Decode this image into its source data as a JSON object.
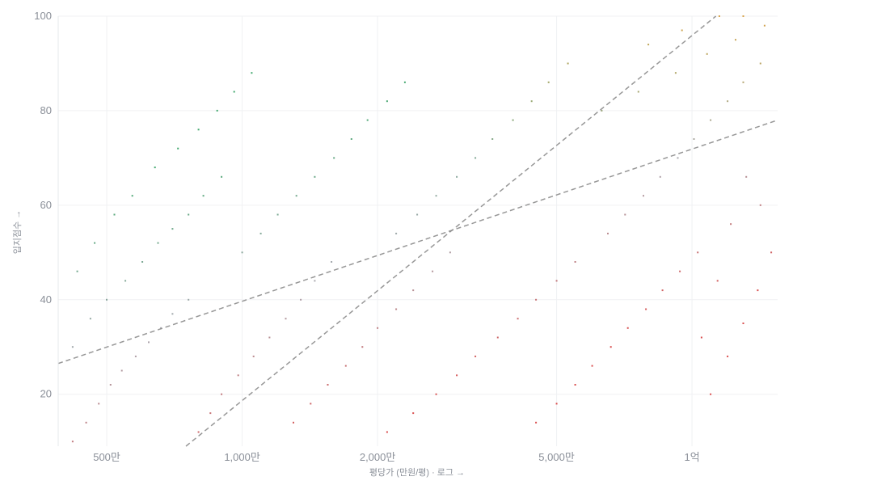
{
  "chart_data": {
    "type": "scatter",
    "xlabel": "평당가 (만원/평) · 로그 →",
    "ylabel": "입지점수 →",
    "x_scale": "log",
    "xlim": [
      390,
      15500
    ],
    "ylim": [
      9,
      100
    ],
    "grid": true,
    "x_ticks": [
      {
        "value": 500,
        "label": "500만"
      },
      {
        "value": 1000,
        "label": "1,000만"
      },
      {
        "value": 2000,
        "label": "2,000만"
      },
      {
        "value": 5000,
        "label": "5,000만"
      },
      {
        "value": 10000,
        "label": "1억"
      }
    ],
    "y_ticks": [
      {
        "value": 20,
        "label": "20"
      },
      {
        "value": 40,
        "label": "40"
      },
      {
        "value": 60,
        "label": "60"
      },
      {
        "value": 80,
        "label": "80"
      },
      {
        "value": 100,
        "label": "100"
      }
    ],
    "reference_lines": [
      {
        "style": "dashed",
        "points": [
          [
            390,
            26.5
          ],
          [
            15500,
            78
          ]
        ]
      },
      {
        "style": "dashed",
        "points": [
          [
            750,
            9
          ],
          [
            11300,
            100
          ]
        ]
      }
    ],
    "color_scale": {
      "low": "#2e9e5e",
      "mid": "#a0a0a8",
      "high": "#d63c3c",
      "warm": "#d49a3a"
    },
    "series": [
      {
        "description_free": true,
        "points": [
          [
            420,
            10
          ],
          [
            450,
            14
          ],
          [
            480,
            18
          ],
          [
            510,
            22
          ],
          [
            540,
            25
          ],
          [
            580,
            28
          ],
          [
            620,
            31
          ],
          [
            660,
            34
          ],
          [
            700,
            37
          ],
          [
            760,
            40
          ],
          [
            420,
            30
          ],
          [
            460,
            36
          ],
          [
            500,
            40
          ],
          [
            550,
            44
          ],
          [
            600,
            48
          ],
          [
            650,
            52
          ],
          [
            700,
            55
          ],
          [
            760,
            58
          ],
          [
            820,
            62
          ],
          [
            900,
            66
          ],
          [
            430,
            46
          ],
          [
            470,
            52
          ],
          [
            520,
            58
          ],
          [
            570,
            62
          ],
          [
            640,
            68
          ],
          [
            720,
            72
          ],
          [
            800,
            76
          ],
          [
            880,
            80
          ],
          [
            960,
            84
          ],
          [
            1050,
            88
          ],
          [
            800,
            12
          ],
          [
            850,
            16
          ],
          [
            900,
            20
          ],
          [
            980,
            24
          ],
          [
            1060,
            28
          ],
          [
            1150,
            32
          ],
          [
            1250,
            36
          ],
          [
            1350,
            40
          ],
          [
            1450,
            44
          ],
          [
            1580,
            48
          ],
          [
            1000,
            50
          ],
          [
            1100,
            54
          ],
          [
            1200,
            58
          ],
          [
            1320,
            62
          ],
          [
            1450,
            66
          ],
          [
            1600,
            70
          ],
          [
            1750,
            74
          ],
          [
            1900,
            78
          ],
          [
            2100,
            82
          ],
          [
            2300,
            86
          ],
          [
            1300,
            14
          ],
          [
            1420,
            18
          ],
          [
            1550,
            22
          ],
          [
            1700,
            26
          ],
          [
            1850,
            30
          ],
          [
            2000,
            34
          ],
          [
            2200,
            38
          ],
          [
            2400,
            42
          ],
          [
            2650,
            46
          ],
          [
            2900,
            50
          ],
          [
            2200,
            54
          ],
          [
            2450,
            58
          ],
          [
            2700,
            62
          ],
          [
            3000,
            66
          ],
          [
            3300,
            70
          ],
          [
            3600,
            74
          ],
          [
            4000,
            78
          ],
          [
            4400,
            82
          ],
          [
            4800,
            86
          ],
          [
            5300,
            90
          ],
          [
            2100,
            12
          ],
          [
            2400,
            16
          ],
          [
            2700,
            20
          ],
          [
            3000,
            24
          ],
          [
            3300,
            28
          ],
          [
            3700,
            32
          ],
          [
            4100,
            36
          ],
          [
            4500,
            40
          ],
          [
            5000,
            44
          ],
          [
            5500,
            48
          ],
          [
            4500,
            14
          ],
          [
            5000,
            18
          ],
          [
            5500,
            22
          ],
          [
            6000,
            26
          ],
          [
            6600,
            30
          ],
          [
            7200,
            34
          ],
          [
            7900,
            38
          ],
          [
            8600,
            42
          ],
          [
            9400,
            46
          ],
          [
            10300,
            50
          ],
          [
            6500,
            54
          ],
          [
            7100,
            58
          ],
          [
            7800,
            62
          ],
          [
            8500,
            66
          ],
          [
            9300,
            70
          ],
          [
            10100,
            74
          ],
          [
            11000,
            78
          ],
          [
            12000,
            82
          ],
          [
            13000,
            86
          ],
          [
            14200,
            90
          ],
          [
            8000,
            94
          ],
          [
            9500,
            97
          ],
          [
            11500,
            100
          ],
          [
            13000,
            100
          ],
          [
            14500,
            98
          ],
          [
            12500,
            95
          ],
          [
            10800,
            92
          ],
          [
            9200,
            88
          ],
          [
            7600,
            84
          ],
          [
            6300,
            80
          ],
          [
            11000,
            20
          ],
          [
            12000,
            28
          ],
          [
            13000,
            35
          ],
          [
            14000,
            42
          ],
          [
            15000,
            50
          ],
          [
            14200,
            60
          ],
          [
            13200,
            66
          ],
          [
            12200,
            56
          ],
          [
            11400,
            44
          ],
          [
            10500,
            32
          ]
        ]
      }
    ]
  }
}
